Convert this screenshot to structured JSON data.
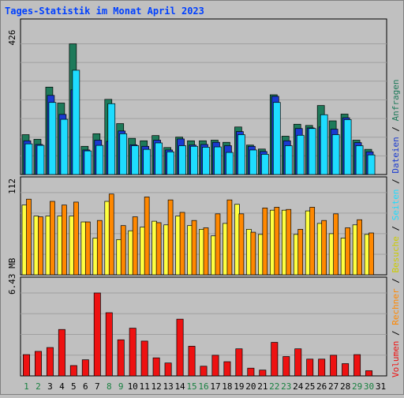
{
  "colors": {
    "background": "#c0c0c0",
    "plot_bg": "#c0c0c0",
    "grid": "#a0a0a0",
    "title": "#0040ff",
    "hits_dark": "#1e7a5a",
    "files_dark": "#1a3ad0",
    "pages_cyan": "#1edcff",
    "visits_yellow": "#ffff40",
    "sites_orange": "#ff8800",
    "volume_red": "#ee1111",
    "weekend_green": "#188040",
    "axis_text": "#000000"
  },
  "chart_data": {
    "type": "bar",
    "title": "Tages-Statistik im Monat April 2023",
    "days": [
      "1",
      "2",
      "3",
      "4",
      "5",
      "6",
      "7",
      "8",
      "9",
      "10",
      "11",
      "12",
      "13",
      "14",
      "15",
      "16",
      "17",
      "18",
      "19",
      "20",
      "21",
      "22",
      "23",
      "24",
      "25",
      "26",
      "27",
      "28",
      "29",
      "30",
      "31"
    ],
    "weekend_days": [
      "1",
      "2",
      "8",
      "9",
      "15",
      "16",
      "22",
      "23",
      "29",
      "30"
    ],
    "panels": [
      {
        "name": "top",
        "ymax_label": "426",
        "ymax": 426,
        "series": [
          {
            "name": "Anfragen",
            "values": [
              130,
              115,
              285,
              233,
              426,
              92,
              133,
              245,
              166,
              118,
              110,
              127,
              88,
              122,
              110,
              110,
              112,
              105,
              155,
              96,
              83,
              260,
              125,
              164,
              160,
              225,
              175,
              197,
              112,
              82,
              0
            ]
          },
          {
            "name": "Dateien",
            "values": [
              110,
              98,
              258,
              196,
              276,
              80,
              112,
              108,
              142,
              97,
              92,
              112,
              80,
              116,
              96,
              98,
              105,
              94,
              140,
              92,
              75,
              255,
              110,
              150,
              152,
              155,
              148,
              185,
              104,
              74,
              0
            ]
          },
          {
            "name": "Seiten",
            "values": [
              100,
              95,
              235,
              180,
              340,
              77,
              95,
              231,
              133,
              94,
              82,
              103,
              74,
              94,
              92,
              89,
              90,
              72,
              130,
              80,
              66,
              235,
              94,
              128,
              150,
              195,
              130,
              179,
              94,
              64,
              0
            ]
          }
        ]
      },
      {
        "name": "middle",
        "ymax_label": "112",
        "ymax": 112,
        "series": [
          {
            "name": "Besuche",
            "values": [
              95,
              80,
              80,
              80,
              80,
              72,
              50,
              100,
              48,
              60,
              65,
              73,
              68,
              80,
              67,
              62,
              53,
              70,
              96,
              62,
              55,
              88,
              88,
              55,
              87,
              70,
              56,
              50,
              68,
              55,
              0
            ]
          },
          {
            "name": "Rechner",
            "values": [
              103,
              79,
              100,
              95,
              99,
              72,
              74,
              110,
              67,
              79,
              106,
              71,
              102,
              85,
              74,
              64,
              83,
              102,
              83,
              58,
              91,
              92,
              89,
              62,
              92,
              74,
              83,
              64,
              75,
              57,
              0
            ]
          }
        ]
      },
      {
        "name": "bottom",
        "ymax_label": "6.43 MB",
        "ymax": 6.43,
        "series": [
          {
            "name": "Volumen",
            "values": [
              1.65,
              1.9,
              2.2,
              3.6,
              0.8,
              1.25,
              6.43,
              4.9,
              2.8,
              3.7,
              2.7,
              1.4,
              1.0,
              4.4,
              2.3,
              0.75,
              1.6,
              1.1,
              2.1,
              0.6,
              0.45,
              2.6,
              1.5,
              2.1,
              1.3,
              1.3,
              1.6,
              0.95,
              1.65,
              0.4,
              0
            ]
          }
        ]
      }
    ]
  },
  "legend": {
    "items": [
      {
        "label": "Volumen",
        "color": "#ee1111"
      },
      {
        "label": "Rechner",
        "color": "#ff8800"
      },
      {
        "label": "Besuche",
        "color": "#cccc00"
      },
      {
        "label": "Seiten",
        "color": "#1edcff"
      },
      {
        "label": "Dateien",
        "color": "#1a3ad0"
      },
      {
        "label": "Anfragen",
        "color": "#1e7a5a"
      }
    ],
    "separator": " / "
  }
}
